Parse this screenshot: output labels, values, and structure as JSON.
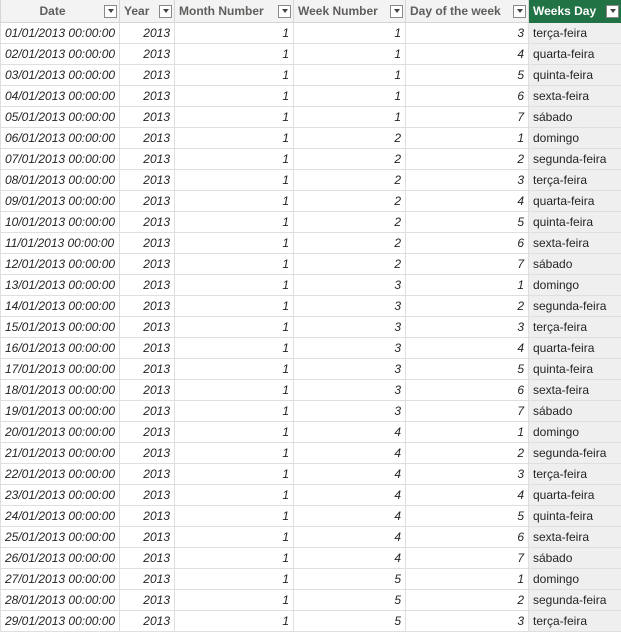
{
  "columns": [
    {
      "key": "date",
      "label": "Date"
    },
    {
      "key": "year",
      "label": "Year"
    },
    {
      "key": "month",
      "label": "Month Number"
    },
    {
      "key": "week",
      "label": "Week Number"
    },
    {
      "key": "dow",
      "label": "Day of the week"
    },
    {
      "key": "weekday",
      "label": "Weeks Day"
    }
  ],
  "selected_column": "weekday",
  "colors": {
    "selected_header": "#217346",
    "header_bg": "#f3f3f3",
    "text_column_bg": "#efefef"
  },
  "rows": [
    {
      "date": "01/01/2013 00:00:00",
      "year": "2013",
      "month": "1",
      "week": "1",
      "dow": "3",
      "weekday": "terça-feira"
    },
    {
      "date": "02/01/2013 00:00:00",
      "year": "2013",
      "month": "1",
      "week": "1",
      "dow": "4",
      "weekday": "quarta-feira"
    },
    {
      "date": "03/01/2013 00:00:00",
      "year": "2013",
      "month": "1",
      "week": "1",
      "dow": "5",
      "weekday": "quinta-feira"
    },
    {
      "date": "04/01/2013 00:00:00",
      "year": "2013",
      "month": "1",
      "week": "1",
      "dow": "6",
      "weekday": "sexta-feira"
    },
    {
      "date": "05/01/2013 00:00:00",
      "year": "2013",
      "month": "1",
      "week": "1",
      "dow": "7",
      "weekday": "sábado"
    },
    {
      "date": "06/01/2013 00:00:00",
      "year": "2013",
      "month": "1",
      "week": "2",
      "dow": "1",
      "weekday": "domingo"
    },
    {
      "date": "07/01/2013 00:00:00",
      "year": "2013",
      "month": "1",
      "week": "2",
      "dow": "2",
      "weekday": "segunda-feira"
    },
    {
      "date": "08/01/2013 00:00:00",
      "year": "2013",
      "month": "1",
      "week": "2",
      "dow": "3",
      "weekday": "terça-feira"
    },
    {
      "date": "09/01/2013 00:00:00",
      "year": "2013",
      "month": "1",
      "week": "2",
      "dow": "4",
      "weekday": "quarta-feira"
    },
    {
      "date": "10/01/2013 00:00:00",
      "year": "2013",
      "month": "1",
      "week": "2",
      "dow": "5",
      "weekday": "quinta-feira"
    },
    {
      "date": "11/01/2013 00:00:00",
      "year": "2013",
      "month": "1",
      "week": "2",
      "dow": "6",
      "weekday": "sexta-feira"
    },
    {
      "date": "12/01/2013 00:00:00",
      "year": "2013",
      "month": "1",
      "week": "2",
      "dow": "7",
      "weekday": "sábado"
    },
    {
      "date": "13/01/2013 00:00:00",
      "year": "2013",
      "month": "1",
      "week": "3",
      "dow": "1",
      "weekday": "domingo"
    },
    {
      "date": "14/01/2013 00:00:00",
      "year": "2013",
      "month": "1",
      "week": "3",
      "dow": "2",
      "weekday": "segunda-feira"
    },
    {
      "date": "15/01/2013 00:00:00",
      "year": "2013",
      "month": "1",
      "week": "3",
      "dow": "3",
      "weekday": "terça-feira"
    },
    {
      "date": "16/01/2013 00:00:00",
      "year": "2013",
      "month": "1",
      "week": "3",
      "dow": "4",
      "weekday": "quarta-feira"
    },
    {
      "date": "17/01/2013 00:00:00",
      "year": "2013",
      "month": "1",
      "week": "3",
      "dow": "5",
      "weekday": "quinta-feira"
    },
    {
      "date": "18/01/2013 00:00:00",
      "year": "2013",
      "month": "1",
      "week": "3",
      "dow": "6",
      "weekday": "sexta-feira"
    },
    {
      "date": "19/01/2013 00:00:00",
      "year": "2013",
      "month": "1",
      "week": "3",
      "dow": "7",
      "weekday": "sábado"
    },
    {
      "date": "20/01/2013 00:00:00",
      "year": "2013",
      "month": "1",
      "week": "4",
      "dow": "1",
      "weekday": "domingo"
    },
    {
      "date": "21/01/2013 00:00:00",
      "year": "2013",
      "month": "1",
      "week": "4",
      "dow": "2",
      "weekday": "segunda-feira"
    },
    {
      "date": "22/01/2013 00:00:00",
      "year": "2013",
      "month": "1",
      "week": "4",
      "dow": "3",
      "weekday": "terça-feira"
    },
    {
      "date": "23/01/2013 00:00:00",
      "year": "2013",
      "month": "1",
      "week": "4",
      "dow": "4",
      "weekday": "quarta-feira"
    },
    {
      "date": "24/01/2013 00:00:00",
      "year": "2013",
      "month": "1",
      "week": "4",
      "dow": "5",
      "weekday": "quinta-feira"
    },
    {
      "date": "25/01/2013 00:00:00",
      "year": "2013",
      "month": "1",
      "week": "4",
      "dow": "6",
      "weekday": "sexta-feira"
    },
    {
      "date": "26/01/2013 00:00:00",
      "year": "2013",
      "month": "1",
      "week": "4",
      "dow": "7",
      "weekday": "sábado"
    },
    {
      "date": "27/01/2013 00:00:00",
      "year": "2013",
      "month": "1",
      "week": "5",
      "dow": "1",
      "weekday": "domingo"
    },
    {
      "date": "28/01/2013 00:00:00",
      "year": "2013",
      "month": "1",
      "week": "5",
      "dow": "2",
      "weekday": "segunda-feira"
    },
    {
      "date": "29/01/2013 00:00:00",
      "year": "2013",
      "month": "1",
      "week": "5",
      "dow": "3",
      "weekday": "terça-feira"
    }
  ]
}
